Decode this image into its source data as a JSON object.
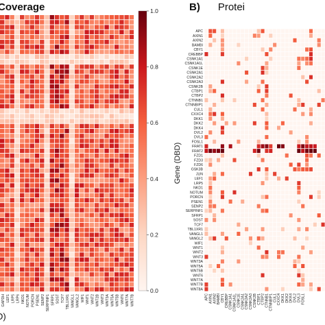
{
  "chart_data": [
    {
      "type": "heatmap",
      "panel": "left",
      "title": "Coverage",
      "bottom_label": "D)",
      "colormap": [
        "#fff5f0",
        "#fdd7c4",
        "#fc9f81",
        "#f5603f",
        "#cb181d",
        "#67000d"
      ],
      "colorbar": {
        "min": 0.0,
        "max": 1.0,
        "ticks": [
          "0.0",
          "0.2",
          "0.4",
          "0.6",
          "0.8",
          "1.0"
        ]
      },
      "x_ticks": [
        "GAPDH",
        "LEF1",
        "LRP5",
        "LRP6",
        "NKD1",
        "NOTUM",
        "PORCN",
        "PSEN1",
        "SENP2",
        "SERPINF1",
        "SFRP1",
        "SOST",
        "TCF7",
        "TBL1XR1",
        "VANGL1",
        "VANGL2",
        "WIF1",
        "WNT1",
        "WNT2",
        "WNT2B",
        "WNT3",
        "WNT3A",
        "WNT5A",
        "WNT5B",
        "WNT6",
        "WNT7A",
        "WNT7B"
      ]
    },
    {
      "type": "heatmap",
      "panel": "right",
      "title": "B)",
      "title_tail": "Protei",
      "ylabel": "Gene (DBD)",
      "rows": [
        "APC",
        "AXIN1",
        "AXIN2",
        "BAMBI",
        "CBY1",
        "CREBBP",
        "CSNK1A1",
        "CSNK1A1L",
        "CSNK1E",
        "CSNK2A1",
        "CSNK2A2",
        "CSNK2A3",
        "CSNK2B",
        "CTBP1",
        "CTBP2",
        "CTNNB1",
        "CTNNBIP1",
        "CUL1",
        "CXXC4",
        "DKK1",
        "DKK2",
        "DKK4",
        "DVL2",
        "DVL3",
        "FOSL1",
        "FRAT1",
        "FRAT2",
        "FZD1",
        "FZD3",
        "FZD6",
        "GSK3B",
        "JUN",
        "LEF1",
        "LRP5",
        "NKD1",
        "NOTUM",
        "PORCN",
        "PSEN1",
        "SENP2",
        "SERPINF1",
        "SFRP1",
        "SOST",
        "TCF7",
        "TBL1XR1",
        "VANGL1",
        "VANGL2",
        "WIF1",
        "WNT1",
        "WNT2",
        "WNT3",
        "WNT3A",
        "WNT5A",
        "WNT5B",
        "WNT6",
        "WNT7A",
        "WNT7B",
        "WNT8A"
      ],
      "cols": [
        "APC",
        "AXIN1",
        "AXIN2",
        "BAMBI",
        "CBY1",
        "CREBBP",
        "CSNK1A1",
        "CSNK1A1L",
        "CSNK1E",
        "CSNK2A1",
        "CSNK2A2",
        "CSNK2A3",
        "CSNK2B",
        "CTBP1",
        "CTBP2",
        "CTNNB1",
        "CTNNBIP1",
        "CUL1",
        "CXXC4",
        "DKK1",
        "DKK2",
        "DKK4",
        "DVL2",
        "DVL3",
        "FOSL1"
      ]
    }
  ]
}
